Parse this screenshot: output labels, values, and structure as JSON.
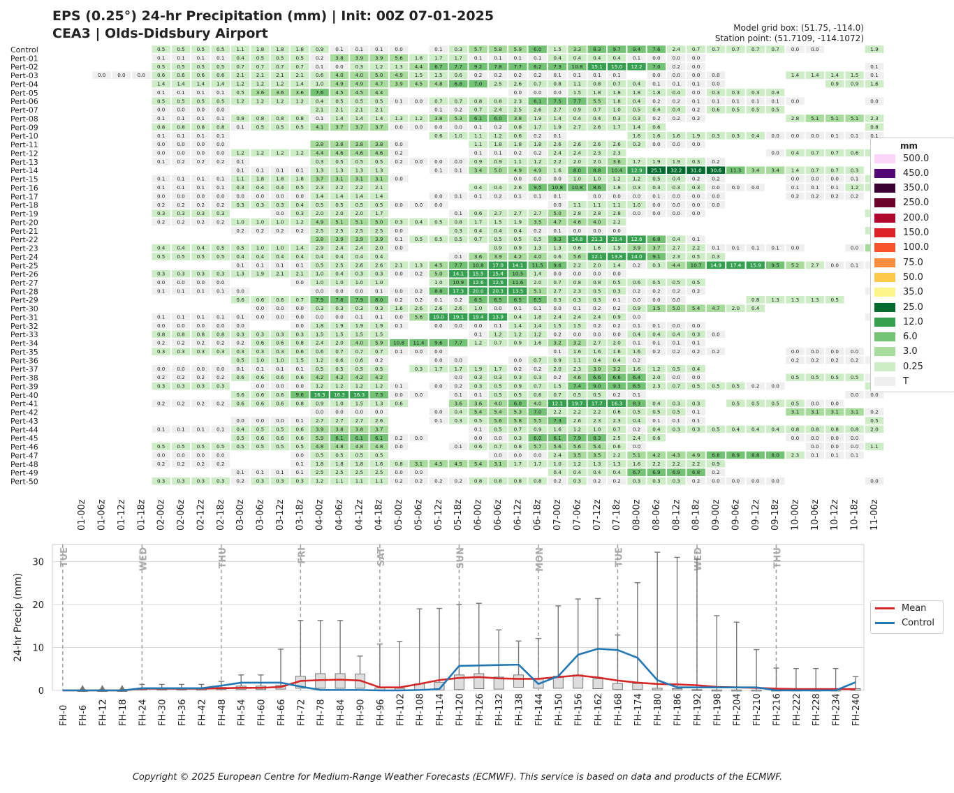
{
  "header": {
    "title": "EPS (0.25°) 24-hr Precipitation (mm) | Init: 00Z 07-01-2025",
    "subtitle": "CEA3 | Olds-Didsbury Airport",
    "grid_box": "Model grid box: (51.75, -114.0)",
    "station_point": "Station point: (51.7109, -114.1072)"
  },
  "legend_heatmap": {
    "title": "mm",
    "items": [
      {
        "label": "500.0",
        "color": "#fcd5f8"
      },
      {
        "label": "450.0",
        "color": "#54057a"
      },
      {
        "label": "350.0",
        "color": "#3b0031"
      },
      {
        "label": "250.0",
        "color": "#6b0028"
      },
      {
        "label": "200.0",
        "color": "#b0062e"
      },
      {
        "label": "150.0",
        "color": "#dc2127"
      },
      {
        "label": "100.0",
        "color": "#f9532c"
      },
      {
        "label": "75.0",
        "color": "#fd8c3c"
      },
      {
        "label": "50.0",
        "color": "#fec84a"
      },
      {
        "label": "35.0",
        "color": "#fdf58a"
      },
      {
        "label": "25.0",
        "color": "#006b2c"
      },
      {
        "label": "12.0",
        "color": "#35a04f"
      },
      {
        "label": "6.0",
        "color": "#72c474"
      },
      {
        "label": "3.0",
        "color": "#a7dc9c"
      },
      {
        "label": "0.25",
        "color": "#cdedc6"
      },
      {
        "label": "T",
        "color": "#efefef"
      }
    ]
  },
  "legend_lines": {
    "items": [
      {
        "label": "Mean",
        "color": "#d62728"
      },
      {
        "label": "Control",
        "color": "#1f77b4"
      }
    ]
  },
  "copyright": "Copyright © 2025 European Centre for Medium-Range Weather Forecasts (ECMWF). This service is based on data and products of the ECMWF.",
  "chart_data": [
    {
      "type": "heatmap",
      "x_labels": [
        "01-00z",
        "01-06z",
        "01-12z",
        "01-18z",
        "02-00z",
        "02-06z",
        "02-12z",
        "02-18z",
        "03-00z",
        "03-06z",
        "03-12z",
        "03-18z",
        "04-00z",
        "04-06z",
        "04-12z",
        "04-18z",
        "05-00z",
        "05-06z",
        "05-12z",
        "05-18z",
        "06-00z",
        "06-06z",
        "06-12z",
        "06-18z",
        "07-00z",
        "07-06z",
        "07-12z",
        "07-18z",
        "08-00z",
        "08-06z",
        "08-12z",
        "08-18z",
        "09-00z",
        "09-06z",
        "09-12z",
        "09-18z",
        "10-00z",
        "10-06z",
        "10-12z",
        "10-18z",
        "11-00z"
      ],
      "rows": [
        {
          "name": "Control",
          "v": "x,x,x,x,0.5,0.5,0.5,0.5,1.1,1.8,1.8,1.8,0.9,0.1,0.1,0.1,0.0,x,0.1,0.3,5.7,5.8,5.9,6.0,1.5,3.3,8.3,9.7,9.4,7.6,2.4,0.7,0.7,0.7,0.7,0.7,0.0,0.0,x,x,1.9"
        },
        {
          "name": "Pert-01",
          "v": "x,x,x,x,0.1,0.1,0.1,0.1,0.4,0.5,0.5,0.5,0.2,3.8,3.9,3.9,5.6,1.8,1.7,1.7,0.1,0.1,0.1,0.1,0.4,0.4,0.4,0.4,0.1,0.0,0.0,0.0,x,x,x,x,x,x,x,x,x"
        },
        {
          "name": "Pert-02",
          "v": "x,x,x,x,0.5,0.5,0.5,0.5,0.7,0.7,0.7,0.7,0.1,0.0,0.3,1.2,1.3,4.4,6.7,7.7,9.2,7.8,7.7,6.2,7.3,10.8,15.1,15.0,12.2,7.0,0.2,0.0,x,x,x,x,x,x,x,x,0.1"
        },
        {
          "name": "Pert-03",
          "v": "x,0.0,0.0,0.0,0.6,0.6,0.6,0.6,2.1,2.1,2.1,2.1,0.6,4.0,4.0,5.0,4.9,1.5,1.5,0.6,0.2,0.2,0.2,0.2,0.1,0.1,0.1,0.1,x,0.0,0.0,0.0,0.0,x,x,x,1.4,1.4,1.4,1.5,0.1"
        },
        {
          "name": "Pert-04",
          "v": "x,x,x,x,1.4,1.4,1.4,1.4,1.2,1.2,1.2,1.4,1.0,4.9,4.9,4.7,3.9,4.5,4.8,6.8,7.0,2.5,2.6,0.7,0.8,1.1,0.8,0.7,0.4,0.1,0.1,0.1,0.0,x,x,x,x,x,0.9,0.9,1.6"
        },
        {
          "name": "Pert-05",
          "v": "x,x,x,x,0.1,0.1,0.1,0.1,0.5,3.6,3.6,3.6,7.6,4.5,4.5,4.4,x,x,x,x,x,x,0.0,0.0,0.0,1.5,1.8,1.8,1.8,1.8,0.4,0.0,0.3,0.3,0.3,0.3,x,x,x,x,x"
        },
        {
          "name": "Pert-06",
          "v": "x,x,x,x,0.5,0.5,0.5,0.5,1.2,1.2,1.2,1.2,0.4,0.5,0.5,0.5,0.1,0.0,0.7,0.7,0.8,0.8,2.3,6.1,7.5,7.7,5.5,1.8,0.4,0.2,0.2,0.1,0.1,0.1,0.1,0.1,0.0,x,x,x,0.0"
        },
        {
          "name": "Pert-07",
          "v": "x,x,x,x,0.0,0.0,0.0,0.0,x,x,x,x,2.1,2.1,2.1,2.1,x,x,0.1,0.2,0.7,2.4,2.5,2.6,2.7,0.9,0.7,1.0,0.5,0.4,0.4,0.2,0.6,0.5,0.5,0.5,x,x,x,x,x"
        },
        {
          "name": "Pert-08",
          "v": "x,x,x,x,0.1,0.1,0.1,0.1,0.8,0.8,0.8,0.8,0.1,1.4,1.4,1.4,1.3,1.2,3.8,5.3,6.1,6.0,3.8,1.9,1.4,0.4,0.4,0.3,0.3,0.2,0.2,0.2,x,x,x,x,2.8,5.1,5.1,5.1,2.3"
        },
        {
          "name": "Pert-09",
          "v": "x,x,x,x,0.8,0.8,0.8,0.8,0.1,0.5,0.5,0.5,4.1,3.7,3.7,3.7,0.0,0.0,0.0,0.0,0.1,0.2,0.8,1.7,1.9,2.7,2.6,1.7,1.4,0.6,x,x,x,x,x,x,x,x,x,x,0.8"
        },
        {
          "name": "Pert-10",
          "v": "x,x,x,x,0.1,0.1,0.1,0.1,x,x,x,x,x,x,x,x,x,x,0.6,1.0,1.1,1.2,0.6,0.2,0.1,x,x,x,1.6,1.6,1.6,1.9,0.3,0.3,0.4,0.0,0.0,0.0,0.1,0.1,0.1"
        },
        {
          "name": "Pert-11",
          "v": "x,x,x,x,0.0,0.0,0.0,0.0,x,x,x,x,3.8,3.8,3.8,3.8,0.0,x,x,x,1.1,1.8,1.8,1.8,2.6,2.6,2.6,2.6,0.3,0.0,0.0,0.0,x,x,x,x,x,x,x,x,x"
        },
        {
          "name": "Pert-12",
          "v": "x,x,x,x,0.0,0.0,0.0,0.0,1.2,1.2,1.2,1.2,4.4,4.6,4.6,4.6,0.2,x,x,x,0.1,0.1,0.2,0.2,2.4,2.4,2.3,2.3,x,x,x,x,x,x,x,0.0,0.4,0.7,0.7,0.6,0.3"
        },
        {
          "name": "Pert-13",
          "v": "x,x,x,x,0.1,0.2,0.2,0.2,0.1,x,x,x,0.3,0.5,0.5,0.5,0.2,0.0,0.0,0.0,0.9,0.9,1.1,1.2,2.2,2.0,2.0,3.6,1.7,1.9,1.9,0.3,0.2,x,x,x,x,x,x,x,x"
        },
        {
          "name": "Pert-14",
          "v": "x,x,x,x,x,x,x,x,0.1,0.1,0.1,0.1,1.3,1.3,1.3,1.3,x,x,0.1,0.1,3.4,5.0,4.9,4.9,1.6,8.0,8.8,10.4,12.9,25.1,32.2,31.0,30.6,11.3,3.4,3.4,1.4,0.7,0.7,0.3,x"
        },
        {
          "name": "Pert-15",
          "v": "x,x,x,x,0.1,0.1,0.1,0.1,1.1,1.8,1.8,1.8,3.7,3.1,3.1,3.1,0.0,x,x,x,x,x,0.0,0.0,0.0,1.0,1.0,1.2,1.2,0.5,0.4,0.2,0.2,x,x,x,0.0,0.0,0.0,0.1,0.6"
        },
        {
          "name": "Pert-16",
          "v": "x,x,x,x,0.1,0.1,0.1,0.1,0.3,0.4,0.4,0.5,2.3,2.2,2.2,2.1,x,x,x,x,0.4,0.4,2.6,9.5,10.8,10.8,8.6,1.8,0.3,0.3,0.3,0.3,0.0,0.0,0.0,x,0.1,0.1,0.1,1.2,2.4"
        },
        {
          "name": "Pert-17",
          "v": "x,x,x,x,0.0,0.0,0.0,0.0,0.0,0.0,0.0,0.0,1.4,1.4,1.4,1.4,x,x,0.0,0.1,0.1,0.2,0.1,0.1,0.1,x,0.0,0.0,0.0,0.1,0.0,0.0,0.0,x,x,x,0.2,0.2,0.2,0.2,x"
        },
        {
          "name": "Pert-18",
          "v": "x,x,x,x,0.2,0.2,0.2,0.2,0.3,0.3,0.3,0.4,0.5,0.5,0.5,0.5,0.0,0.0,0.0,x,x,x,x,x,0.0,1.1,1.1,1.1,1.0,0.0,0.0,0.0,0.0,x,x,x,x,x,x,x,x"
        },
        {
          "name": "Pert-19",
          "v": "x,x,x,x,0.3,0.3,0.3,0.3,x,x,0.0,0.3,2.0,2.0,2.0,1.7,x,x,x,0.1,0.6,2.7,2.7,2.7,5.0,2.8,2.8,2.8,0.0,0.0,0.0,0.0,x,x,x,x,x,x,x,x,0.5"
        },
        {
          "name": "Pert-20",
          "v": "x,x,x,x,0.2,0.2,0.2,0.2,1.0,1.0,1.0,1.2,4.9,5.1,5.1,5.0,0.3,0.4,0.5,0.8,1.7,1.5,1.9,3.5,4.7,4.6,4.0,2.2,x,x,x,x,x,x,x,x,x,x,x,x,x"
        },
        {
          "name": "Pert-21",
          "v": "x,x,x,x,x,x,x,x,0.2,0.2,0.2,0.2,2.5,2.5,2.5,2.5,0.0,x,x,0.3,0.4,0.4,0.4,0.2,0.1,0.0,0.0,0.0,x,x,x,x,x,x,x,x,x,x,x,x,0.6"
        },
        {
          "name": "Pert-22",
          "v": "x,x,x,x,x,x,x,x,x,x,x,x,3.8,3.9,3.9,3.9,0.1,0.5,0.5,0.5,0.7,0.5,0.5,0.5,9.3,14.8,21.3,21.4,12.6,6.8,0.4,0.1,x,x,x,x,x,x,x,x,x"
        },
        {
          "name": "Pert-23",
          "v": "x,x,x,x,0.4,0.4,0.4,0.5,0.5,1.0,1.0,1.4,2.9,2.4,2.4,2.0,0.0,x,x,x,x,0.9,0.9,1.3,1.3,0.6,1.6,1.9,3.9,3.7,2.7,2.2,0.1,0.1,0.1,0.1,0.0,x,x,0.0,3.2"
        },
        {
          "name": "Pert-24",
          "v": "x,x,x,x,0.5,0.5,0.5,0.5,0.4,0.4,0.4,0.4,0.4,0.4,0.4,0.4,x,x,x,0.1,3.6,3.9,4.2,4.0,0.6,5.6,12.1,13.8,14.0,9.1,2.3,0.5,0.3,x,x,x,x,x,x,x,x"
        },
        {
          "name": "Pert-25",
          "v": "x,x,x,x,x,x,x,x,0.1,0.1,0.1,0.1,0.5,2.5,2.6,2.6,2.1,1.3,4.5,7.7,10.8,17.0,14.1,11.5,9.6,2.2,2.0,1.4,0.2,0.3,4.4,10.7,14.9,17.4,15.9,9.5,5.2,2.7,0.0,0.1,0.1"
        },
        {
          "name": "Pert-26",
          "v": "x,x,x,x,0.3,0.3,0.3,0.3,1.3,1.9,2.1,2.1,1.0,0.4,0.3,0.3,0.0,0.2,5.0,14.1,15.5,15.4,10.5,1.4,0.0,0.0,0.0,0.0,x,x,x,x,x,x,x,x,x,x,x,x,x"
        },
        {
          "name": "Pert-27",
          "v": "x,x,x,x,0.0,0.0,0.0,0.0,x,x,x,0.0,1.0,1.0,1.0,1.0,x,x,1.0,10.9,12.6,12.6,11.6,2.0,0.7,0.8,0.8,0.5,0.6,0.5,0.5,0.5,x,x,x,x,x,x,x,x,x"
        },
        {
          "name": "Pert-28",
          "v": "x,x,x,x,0.1,0.1,0.1,0.1,0.0,x,x,x,0.0,0.0,0.0,0.1,0.0,0.2,8.8,17.3,20.0,20.3,13.5,5.1,2.7,2.3,0.5,0.3,0.2,0.2,0.2,0.2,x,x,x,x,x,x,x,x,0.2"
        },
        {
          "name": "Pert-29",
          "v": "x,x,x,x,x,x,x,x,0.6,0.6,0.6,0.7,7.9,7.8,7.9,8.0,0.2,0.2,0.1,0.2,6.5,6.5,6.5,6.5,0.3,0.3,0.3,0.1,0.0,0.0,0.0,x,x,x,0.8,1.3,1.3,1.3,0.5,x,x"
        },
        {
          "name": "Pert-30",
          "v": "x,x,x,x,x,x,x,x,x,0.0,0.0,0.0,0.3,0.3,0.3,0.3,1.6,2.6,2.6,2.6,1.0,0.0,0.1,0.1,0.0,0.1,0.2,0.2,0.9,3.5,5.0,5.4,4.7,2.0,0.4,x,x,x,x,x,x"
        },
        {
          "name": "Pert-31",
          "v": "x,x,x,x,0.1,0.1,0.1,0.1,0.1,0.0,0.0,0.0,0.0,0.0,0.1,0.1,0.0,5.6,19.0,19.1,19.4,13.9,0.4,1.8,2.4,2.4,2.4,0.9,0.0,x,x,x,x,x,x,x,x,x,x,x,0.0"
        },
        {
          "name": "Pert-32",
          "v": "x,x,x,x,0.0,0.0,0.0,0.0,0.0,x,x,0.0,1.8,1.9,1.9,1.9,0.1,x,0.0,0.0,0.0,0.1,1.4,1.4,1.5,1.5,0.2,0.2,0.1,0.1,0.0,0.0,x,x,x,x,x,x,x,x,x"
        },
        {
          "name": "Pert-33",
          "v": "x,x,x,x,0.8,0.8,0.8,0.8,0.3,0.3,0.3,0.3,1.5,1.5,1.5,1.5,x,x,x,x,0.1,1.2,1.2,1.2,0.2,0.0,0.0,0.0,0.4,0.4,0.4,0.3,0.0,x,x,x,x,x,x,x,x"
        },
        {
          "name": "Pert-34",
          "v": "x,x,x,x,0.2,0.2,0.2,0.2,0.2,0.6,0.6,0.8,2.4,2.0,4.0,5.9,10.8,11.4,9.6,7.7,1.2,0.7,0.9,1.6,3.2,3.2,2.7,2.0,0.1,0.1,0.1,0.1,x,x,x,x,x,x,x,x,x"
        },
        {
          "name": "Pert-35",
          "v": "x,x,x,x,0.3,0.3,0.3,0.3,0.3,0.3,0.3,0.6,0.6,0.7,0.7,0.7,0.1,0.0,0.0,x,x,x,x,x,0.1,1.6,1.6,1.6,1.6,0.2,0.2,0.2,0.2,x,x,x,0.0,0.0,0.0,0.0,x"
        },
        {
          "name": "Pert-36",
          "v": "x,x,x,x,x,x,x,x,0.5,1.0,1.0,1.5,1.2,0.6,0.6,0.2,x,x,0.0,0.0,x,x,0.0,0.7,0.9,1.1,0.4,0.4,0.2,x,x,x,x,x,x,x,0.2,0.2,0.2,0.2,0.1"
        },
        {
          "name": "Pert-37",
          "v": "x,x,x,x,0.0,0.0,0.0,0.0,0.1,0.1,0.1,0.1,0.5,0.5,0.5,0.5,x,0.3,1.7,1.7,1.9,1.7,0.2,0.2,2.0,2.3,3.0,3.2,1.6,1.2,0.5,0.4,x,x,x,x,x,x,x,x,x"
        },
        {
          "name": "Pert-38",
          "v": "x,x,x,x,0.2,0.2,0.2,0.2,0.6,0.6,0.6,0.6,4.2,4.2,4.2,4.2,x,x,x,0.0,0.3,0.3,0.3,0.3,0.2,4.6,6.6,6.6,6.4,2.0,0.0,0.0,x,x,x,x,0.5,0.5,0.5,0.5,0.0"
        },
        {
          "name": "Pert-39",
          "v": "x,x,x,x,0.3,0.3,0.3,0.3,x,0.0,0.0,0.0,1.2,1.2,1.2,1.2,0.1,x,0.0,0.2,0.3,0.5,0.9,0.7,1.5,7.4,9.0,9.3,8.5,2.3,0.7,0.5,0.5,0.5,0.2,0.0,x,x,x,x,1.0"
        },
        {
          "name": "Pert-40",
          "v": "x,x,x,x,x,x,x,x,0.6,0.6,0.6,9.6,16.3,16.3,16.3,7.3,0.0,0.0,x,0.1,0.1,0.5,0.5,0.6,0.7,0.5,0.5,0.2,0.1,x,x,x,x,x,x,x,x,x,x,0.0,0.0"
        },
        {
          "name": "Pert-41",
          "v": "x,x,x,x,0.2,0.2,0.2,0.2,0.6,0.6,0.6,0.8,0.9,1.0,1.5,1.3,0.6,x,x,3.6,3.6,4.0,6.0,4.0,12.1,19.7,17.7,16.3,8.3,0.4,0.3,0.3,x,0.5,0.5,0.5,0.5,0.0,0.0,x,x"
        },
        {
          "name": "Pert-42",
          "v": "x,x,x,x,x,x,x,x,x,x,x,x,0.0,0.0,0.0,0.0,x,x,0.0,0.4,5.4,5.4,5.3,7.0,2.2,2.2,2.2,0.6,0.5,0.5,0.5,0.1,x,x,x,x,3.1,3.1,3.1,3.1,0.2"
        },
        {
          "name": "Pert-43",
          "v": "x,x,x,x,x,x,x,x,0.0,0.0,0.0,0.1,2.7,2.7,2.7,2.6,x,x,0.1,0.3,0.5,5.6,5.8,5.5,7.3,2.6,2.3,2.3,0.4,0.1,0.1,0.1,x,x,x,x,x,x,x,x,0.5"
        },
        {
          "name": "Pert-44",
          "v": "x,x,x,x,0.1,0.1,0.1,0.1,0.4,0.5,0.5,0.6,3.9,3.8,3.8,3.7,x,x,x,x,0.1,0.5,0.7,0.9,1.6,1.2,1.0,0.7,0.2,0.4,0.3,0.3,0.5,0.4,0.4,0.4,0.8,0.8,0.8,0.8,2.0"
        },
        {
          "name": "Pert-45",
          "v": "x,x,x,x,x,x,x,x,0.5,0.6,0.6,0.6,5.9,6.1,6.1,6.1,0.2,0.0,x,x,0.0,0.0,0.3,6.0,6.1,7.9,8.3,2.5,2.4,0.6,x,x,x,x,x,x,0.0,0.0,0.0,0.0,x"
        },
        {
          "name": "Pert-46",
          "v": "x,x,x,x,0.5,0.5,0.5,0.5,0.5,0.5,0.5,0.5,4.8,4.8,4.8,4.8,0.0,x,x,0.1,0.6,0.7,0.8,5.7,5.6,5.6,5.4,0.6,0.0,x,x,x,x,x,x,x,x,0.0,0.0,0.0,1.1"
        },
        {
          "name": "Pert-47",
          "v": "x,x,x,x,0.0,0.0,0.0,0.0,x,x,x,0.0,0.5,0.5,0.5,0.5,x,x,x,x,x,0.0,0.0,0.0,2.4,3.5,3.5,2.2,5.1,4.2,4.3,4.9,6.8,8.9,8.8,8.0,2.3,0.1,0.1,0.1,x"
        },
        {
          "name": "Pert-48",
          "v": "x,x,x,x,0.2,0.2,0.2,0.2,x,x,x,0.1,1.8,1.8,1.8,1.6,0.8,3.1,4.5,4.5,5.4,3.1,1.7,1.7,1.0,1.2,1.3,1.3,1.6,2.2,2.2,2.2,0.9,x,x,x,x,x,x,x,x"
        },
        {
          "name": "Pert-49",
          "v": "x,x,x,x,x,x,x,x,0.1,0.1,0.1,0.1,2.5,2.5,2.5,2.5,0.0,0.0,x,x,x,x,x,x,0.4,0.4,0.4,0.4,6.7,6.9,6.9,6.8,0.2,x,x,x,x,x,x,x,x"
        },
        {
          "name": "Pert-50",
          "v": "x,x,x,x,0.3,0.3,0.3,0.3,0.2,0.3,0.3,0.3,1.2,1.1,1.1,1.1,0.2,0.2,0.2,0.2,0.8,0.8,0.8,0.8,0.2,0.3,0.2,0.2,0.3,0.3,0.3,0.2,0.0,0.0,0.0,0.0,x,x,x,x,0.0"
        }
      ]
    },
    {
      "type": "box",
      "ylabel": "24-hr Precip (mm)",
      "ylim": [
        0,
        34
      ],
      "yticks": [
        0,
        10,
        20,
        30
      ],
      "grid": true,
      "x_labels": [
        "FH-0",
        "FH-6",
        "FH-12",
        "FH-18",
        "FH-24",
        "FH-30",
        "FH-36",
        "FH-42",
        "FH-48",
        "FH-54",
        "FH-60",
        "FH-66",
        "FH-72",
        "FH-78",
        "FH-84",
        "FH-90",
        "FH-96",
        "FH-102",
        "FH-108",
        "FH-114",
        "FH-120",
        "FH-126",
        "FH-132",
        "FH-138",
        "FH-144",
        "FH-150",
        "FH-156",
        "FH-162",
        "FH-168",
        "FH-174",
        "FH-180",
        "FH-186",
        "FH-192",
        "FH-198",
        "FH-204",
        "FH-210",
        "FH-216",
        "FH-222",
        "FH-228",
        "FH-234",
        "FH-240"
      ],
      "day_markers": [
        {
          "index": 0,
          "label": "TUE"
        },
        {
          "index": 4,
          "label": "WED"
        },
        {
          "index": 8,
          "label": "THU"
        },
        {
          "index": 12,
          "label": "FRI"
        },
        {
          "index": 16,
          "label": "SAT"
        },
        {
          "index": 20,
          "label": "SUN"
        },
        {
          "index": 24,
          "label": "MON"
        },
        {
          "index": 28,
          "label": "TUE"
        },
        {
          "index": 32,
          "label": "WED"
        },
        {
          "index": 36,
          "label": "THU"
        }
      ],
      "whisker_max": [
        0,
        0.2,
        0.2,
        0.2,
        1.4,
        1.4,
        1.4,
        1.4,
        2.1,
        3.6,
        3.6,
        9.6,
        16.3,
        16.3,
        16.3,
        8.0,
        10.8,
        11.4,
        19.0,
        19.1,
        20.0,
        20.3,
        14.1,
        11.5,
        12.1,
        19.7,
        21.3,
        21.4,
        12.9,
        25.1,
        32.2,
        31.0,
        30.6,
        17.4,
        15.9,
        9.5,
        5.2,
        5.1,
        5.1,
        5.1,
        3.2
      ],
      "q1": [
        0,
        0,
        0,
        0,
        0.1,
        0.1,
        0.1,
        0.1,
        0.2,
        0.2,
        0.2,
        0.3,
        0.5,
        0.5,
        0.5,
        0.5,
        0,
        0,
        0,
        0.1,
        0.2,
        0.4,
        0.3,
        0.7,
        0.5,
        0.5,
        0.5,
        0.4,
        0.2,
        0.2,
        0.1,
        0.1,
        0.1,
        0,
        0,
        0,
        0,
        0,
        0,
        0,
        0
      ],
      "q3": [
        0,
        0,
        0,
        0,
        0.5,
        0.5,
        0.5,
        0.5,
        0.7,
        1,
        1,
        1.2,
        3.3,
        3.9,
        3.9,
        3.8,
        0.6,
        0.5,
        1.5,
        1.9,
        3.6,
        3.9,
        3.1,
        3.6,
        2.7,
        3.3,
        3.6,
        2.7,
        1.6,
        1.6,
        0.5,
        0.4,
        0.2,
        0.1,
        0.1,
        0.1,
        0.1,
        0.1,
        0.1,
        0.1,
        0.4
      ],
      "fliers": [
        0,
        0.6,
        0.6,
        0.6,
        0,
        0,
        0,
        0,
        0,
        0,
        0,
        0,
        0,
        0,
        0,
        0,
        0,
        0,
        0,
        0,
        0,
        0,
        0,
        0,
        0,
        0,
        0,
        0,
        0,
        0,
        0,
        0,
        0,
        0,
        0,
        0,
        0,
        0,
        0,
        0,
        0
      ],
      "series": [
        {
          "name": "Mean",
          "values": [
            0,
            0,
            0,
            0,
            0.4,
            0.4,
            0.4,
            0.4,
            0.5,
            0.6,
            0.6,
            0.8,
            2.2,
            2.4,
            2.5,
            2.3,
            0.7,
            0.7,
            1.5,
            2.4,
            2.9,
            3.1,
            2.8,
            2.7,
            2.7,
            3.1,
            3.5,
            3.0,
            2.3,
            1.8,
            1.5,
            1.4,
            1.2,
            0.8,
            0.7,
            0.6,
            0.4,
            0.3,
            0.3,
            0.3,
            0.3
          ]
        },
        {
          "name": "Control",
          "values": [
            0,
            0,
            0,
            0,
            0.5,
            0.5,
            0.5,
            0.5,
            1.1,
            1.8,
            1.8,
            1.8,
            0.9,
            0.1,
            0.1,
            0.1,
            0.0,
            0,
            0.1,
            0.3,
            5.7,
            5.8,
            5.9,
            6.0,
            1.5,
            3.3,
            8.3,
            9.7,
            9.4,
            7.6,
            2.4,
            0.7,
            0.7,
            0.7,
            0.7,
            0.7,
            0.0,
            0.0,
            0,
            0,
            1.9
          ]
        }
      ]
    }
  ]
}
